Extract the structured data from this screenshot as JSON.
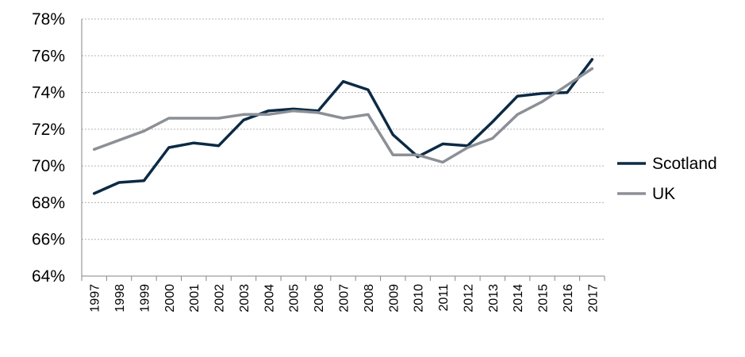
{
  "chart_data": {
    "type": "line",
    "title": "",
    "xlabel": "",
    "ylabel": "",
    "x": [
      "1997",
      "1998",
      "1999",
      "2000",
      "2001",
      "2002",
      "2003",
      "2004",
      "2005",
      "2006",
      "2007",
      "2008",
      "2009",
      "2010",
      "2011",
      "2012",
      "2013",
      "2014",
      "2015",
      "2016",
      "2017"
    ],
    "ylim": [
      64,
      78
    ],
    "yticks": [
      "64%",
      "66%",
      "68%",
      "70%",
      "72%",
      "74%",
      "76%",
      "78%"
    ],
    "grid": true,
    "legend": "right",
    "series": [
      {
        "name": "Scotland",
        "color": "#0b2a45",
        "values": [
          68.5,
          69.1,
          69.2,
          71.0,
          71.25,
          71.1,
          72.5,
          73.0,
          73.1,
          73.0,
          74.6,
          74.15,
          71.7,
          70.5,
          71.2,
          71.1,
          72.4,
          73.8,
          73.95,
          74.0,
          75.8
        ]
      },
      {
        "name": "UK",
        "color": "#8c9096",
        "values": [
          70.9,
          71.4,
          71.9,
          72.6,
          72.6,
          72.6,
          72.8,
          72.8,
          73.0,
          72.9,
          72.6,
          72.8,
          70.6,
          70.6,
          70.2,
          71.0,
          71.5,
          72.8,
          73.5,
          74.4,
          75.3
        ]
      }
    ]
  }
}
